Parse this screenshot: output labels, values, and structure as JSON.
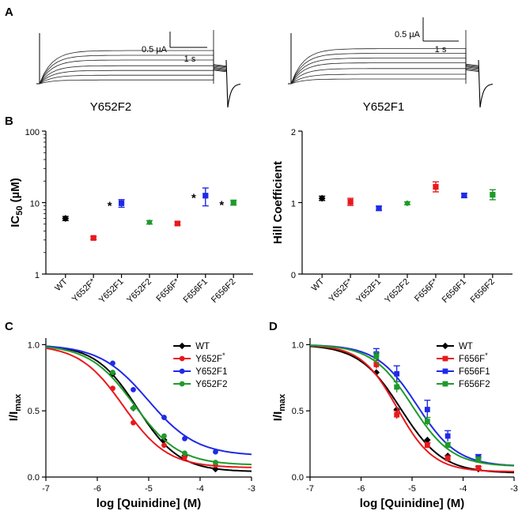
{
  "panels": {
    "A": "A",
    "B": "B",
    "C": "C",
    "D": "D"
  },
  "traces": [
    {
      "title": "Y652F2",
      "scale_current": "0.5 µA",
      "scale_time": "1 s",
      "levels": [
        0.08,
        0.18,
        0.28,
        0.38,
        0.5,
        0.6,
        0.7
      ]
    },
    {
      "title": "Y652F1",
      "scale_current": "0.5 µA",
      "scale_time": "1 s",
      "levels": [
        0.1,
        0.2,
        0.32,
        0.44,
        0.54,
        0.64,
        0.74
      ]
    }
  ],
  "chart_data": [
    {
      "id": "B-left",
      "type": "scatter",
      "ylabel": "IC50 (µM)",
      "ylabel_main": "IC",
      "ylabel_sub": "50",
      "ylabel_unit": " (µM)",
      "yscale": "log",
      "ylim": [
        1,
        100
      ],
      "yticks": [
        1,
        10,
        100
      ],
      "categories": [
        "WT",
        "Y652F*",
        "Y652F1",
        "Y652F2",
        "F656F*",
        "F656F1",
        "F656F2"
      ],
      "values": [
        6.0,
        3.2,
        9.8,
        5.3,
        5.1,
        12.5,
        10.0
      ],
      "errors": [
        0.4,
        0.15,
        1.2,
        0.3,
        0.25,
        3.5,
        0.8
      ],
      "markers": [
        "diamond",
        "square",
        "square",
        "hexagon",
        "square",
        "square",
        "square"
      ],
      "colors": [
        "#000000",
        "#e8191d",
        "#1f2ae6",
        "#1f9a2a",
        "#e8191d",
        "#1f2ae6",
        "#1f9a2a"
      ],
      "annotations": [
        "",
        "",
        "*",
        "",
        "",
        "*",
        "*"
      ]
    },
    {
      "id": "B-right",
      "type": "scatter",
      "ylabel": "Hill Coefficient",
      "ylim": [
        0,
        2
      ],
      "yticks": [
        0,
        1,
        2
      ],
      "categories": [
        "WT",
        "Y652F*",
        "Y652F1",
        "Y652F2",
        "F656F*",
        "F656F1",
        "F656F2"
      ],
      "values": [
        1.06,
        1.01,
        0.92,
        0.99,
        1.22,
        1.1,
        1.11
      ],
      "errors": [
        0.03,
        0.05,
        0.03,
        0.02,
        0.07,
        0.03,
        0.07
      ],
      "markers": [
        "diamond",
        "square",
        "square",
        "hexagon",
        "square",
        "square",
        "square"
      ],
      "colors": [
        "#000000",
        "#e8191d",
        "#1f2ae6",
        "#1f9a2a",
        "#e8191d",
        "#1f2ae6",
        "#1f9a2a"
      ]
    },
    {
      "id": "C",
      "type": "line",
      "xlabel": "log [Quinidine] (M)",
      "ylabel_main": "I/I",
      "ylabel_sub": "max",
      "xlim": [
        -7,
        -3
      ],
      "ylim": [
        0,
        1.05
      ],
      "xticks": [
        -7,
        -6,
        -5,
        -4,
        -3
      ],
      "yticks": [
        0.0,
        0.5,
        1.0
      ],
      "x": [
        -5.7,
        -5.3,
        -4.7,
        -4.3,
        -3.7
      ],
      "legend_position": "top-right",
      "series": [
        {
          "name": "WT",
          "sup": "",
          "color": "#000000",
          "marker": "diamond",
          "values": [
            0.78,
            0.52,
            0.28,
            0.16,
            0.06
          ],
          "fit": {
            "log_ic50": -5.22,
            "hill": 1.06,
            "bottom": 0.04
          }
        },
        {
          "name": "Y652F",
          "sup": "*",
          "color": "#e8191d",
          "marker": "circle",
          "values": [
            0.67,
            0.41,
            0.24,
            0.15,
            0.09
          ],
          "fit": {
            "log_ic50": -5.49,
            "hill": 1.01,
            "bottom": 0.07
          }
        },
        {
          "name": "Y652F1",
          "sup": "",
          "color": "#1f2ae6",
          "marker": "circle",
          "values": [
            0.86,
            0.66,
            0.45,
            0.29,
            0.19
          ],
          "fit": {
            "log_ic50": -5.01,
            "hill": 0.92,
            "bottom": 0.16
          }
        },
        {
          "name": "Y652F2",
          "sup": "",
          "color": "#1f9a2a",
          "marker": "circle",
          "values": [
            0.79,
            0.52,
            0.31,
            0.18,
            0.11
          ],
          "fit": {
            "log_ic50": -5.28,
            "hill": 0.99,
            "bottom": 0.09
          }
        }
      ]
    },
    {
      "id": "D",
      "type": "line",
      "xlabel": "log [Quinidine] (M)",
      "ylabel_main": "I/I",
      "ylabel_sub": "max",
      "xlim": [
        -7,
        -3
      ],
      "ylim": [
        0,
        1.05
      ],
      "xticks": [
        -7,
        -6,
        -5,
        -4,
        -3
      ],
      "yticks": [
        0.0,
        0.5,
        1.0
      ],
      "x": [
        -5.7,
        -5.3,
        -4.7,
        -4.3,
        -3.7
      ],
      "legend_position": "top-right",
      "series": [
        {
          "name": "WT",
          "sup": "",
          "color": "#000000",
          "marker": "diamond",
          "values": [
            0.79,
            0.51,
            0.28,
            0.16,
            0.06
          ],
          "errors": [
            0,
            0,
            0,
            0,
            0
          ],
          "fit": {
            "log_ic50": -5.22,
            "hill": 1.06,
            "bottom": 0.03
          }
        },
        {
          "name": "F656F",
          "sup": "*",
          "color": "#e8191d",
          "marker": "square",
          "values": [
            0.85,
            0.47,
            0.24,
            0.14,
            0.07
          ],
          "errors": [
            0.03,
            0.03,
            0.02,
            0.02,
            0.01
          ],
          "fit": {
            "log_ic50": -5.29,
            "hill": 1.22,
            "bottom": 0.04
          }
        },
        {
          "name": "F656F1",
          "sup": "",
          "color": "#1f2ae6",
          "marker": "square",
          "values": [
            0.93,
            0.78,
            0.51,
            0.31,
            0.15
          ],
          "errors": [
            0.04,
            0.06,
            0.07,
            0.04,
            0.02
          ],
          "fit": {
            "log_ic50": -4.9,
            "hill": 1.1,
            "bottom": 0.08
          }
        },
        {
          "name": "F656F2",
          "sup": "",
          "color": "#1f9a2a",
          "marker": "square",
          "values": [
            0.91,
            0.68,
            0.42,
            0.24,
            0.13
          ],
          "errors": [
            0.03,
            0.04,
            0.03,
            0.02,
            0.02
          ],
          "fit": {
            "log_ic50": -5.0,
            "hill": 1.11,
            "bottom": 0.08
          }
        }
      ]
    }
  ]
}
